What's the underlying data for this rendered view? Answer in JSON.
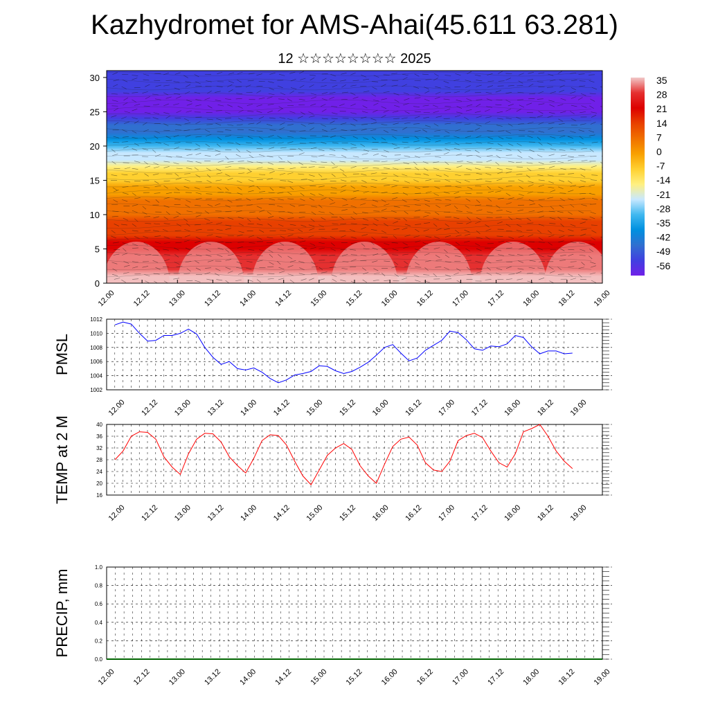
{
  "title": "Kazhydromet for AMS-Ahai(45.611 63.281)",
  "subtitle": "12 ☆☆☆☆☆☆☆☆ 2025",
  "chart_data": [
    {
      "type": "heatmap",
      "title": "",
      "xlabel": "",
      "ylabel": "",
      "x_tick_labels": [
        "12.00",
        "12.12",
        "13.00",
        "13.12",
        "14.00",
        "14.12",
        "15.00",
        "15.12",
        "16.00",
        "16.12",
        "17.00",
        "17.12",
        "18.00",
        "18.12",
        "19.00"
      ],
      "y_ticks": [
        0,
        5,
        10,
        15,
        20,
        25,
        30
      ],
      "ylim": [
        0,
        31
      ],
      "overlay": "wind vectors",
      "colorbar": {
        "labels": [
          "35",
          "28",
          "21",
          "14",
          "7",
          "0",
          "-7",
          "-14",
          "-21",
          "-28",
          "-35",
          "-42",
          "-49",
          "-56"
        ],
        "range": [
          -56,
          35
        ],
        "colors": [
          "#f2c8c8",
          "#e53030",
          "#dd0000",
          "#e84000",
          "#f07000",
          "#f8a000",
          "#ffd030",
          "#fff080",
          "#c8e8ff",
          "#40b8f0",
          "#0090e0",
          "#3070d0",
          "#4040e0",
          "#7020e8"
        ]
      },
      "levels": [
        0,
        5,
        10,
        15,
        20,
        25,
        30
      ],
      "level_temps": [
        35,
        22,
        10,
        -5,
        -28,
        -56,
        -50
      ]
    },
    {
      "type": "line",
      "title": "",
      "xlabel": "",
      "ylabel": "PMSL",
      "color": "#0000ff",
      "x_tick_labels": [
        "12.00",
        "12.12",
        "13.00",
        "13.12",
        "14.00",
        "14.12",
        "15.00",
        "15.12",
        "16.00",
        "16.12",
        "17.00",
        "17.12",
        "18.00",
        "18.12",
        "19.00"
      ],
      "y_ticks": [
        1002,
        1004,
        1006,
        1008,
        1010,
        1012
      ],
      "ylim": [
        1002,
        1012
      ],
      "values": [
        1011.2,
        1011.6,
        1011.3,
        1010.0,
        1008.9,
        1009.0,
        1009.7,
        1009.7,
        1010.0,
        1010.6,
        1009.9,
        1008.0,
        1006.6,
        1005.6,
        1006.0,
        1005.0,
        1004.8,
        1005.1,
        1004.5,
        1003.6,
        1003.0,
        1003.4,
        1004.1,
        1004.3,
        1004.6,
        1005.4,
        1005.3,
        1004.7,
        1004.3,
        1004.6,
        1005.2,
        1005.9,
        1006.9,
        1008.0,
        1008.4,
        1007.2,
        1006.1,
        1006.5,
        1007.6,
        1008.3,
        1009.0,
        1010.3,
        1010.1,
        1009.1,
        1007.8,
        1007.6,
        1008.2,
        1008.1,
        1008.5,
        1009.7,
        1009.4,
        1008.1,
        1007.1,
        1007.5,
        1007.5,
        1007.1,
        1007.2
      ]
    },
    {
      "type": "line",
      "title": "",
      "xlabel": "",
      "ylabel": "TEMP at 2 M",
      "color": "#ff0000",
      "x_tick_labels": [
        "12.00",
        "12.12",
        "13.00",
        "13.12",
        "14.00",
        "14.12",
        "15.00",
        "15.12",
        "16.00",
        "16.12",
        "17.00",
        "17.12",
        "18.00",
        "18.12",
        "19.00"
      ],
      "y_ticks": [
        16,
        20,
        24,
        28,
        32,
        36,
        40
      ],
      "ylim": [
        16,
        40
      ],
      "values": [
        28.0,
        31.0,
        36.0,
        37.5,
        37.3,
        35.0,
        29.0,
        25.5,
        23.0,
        30.0,
        35.0,
        37.0,
        36.8,
        34.0,
        29.0,
        26.0,
        23.5,
        28.5,
        34.5,
        36.5,
        36.2,
        33.0,
        27.5,
        22.5,
        19.5,
        24.5,
        29.5,
        32.0,
        33.5,
        31.5,
        26.0,
        22.5,
        20.0,
        26.5,
        32.5,
        35.0,
        35.7,
        33.0,
        27.0,
        24.5,
        24.0,
        27.5,
        34.5,
        36.2,
        37.0,
        35.5,
        31.0,
        27.0,
        25.5,
        30.0,
        37.5,
        38.6,
        40.0,
        36.0,
        31.0,
        27.5,
        25.0
      ]
    },
    {
      "type": "bar",
      "title": "",
      "xlabel": "",
      "ylabel": "PRECIP, mm",
      "x_tick_labels": [
        "12.00",
        "12.12",
        "13.00",
        "13.12",
        "14.00",
        "14.12",
        "15.00",
        "15.12",
        "16.00",
        "16.12",
        "17.00",
        "17.12",
        "18.00",
        "18.12",
        "19.00"
      ],
      "y_ticks": [
        "0.0",
        "0.2",
        "0.4",
        "0.6",
        "0.8",
        "1.0"
      ],
      "ylim": [
        0,
        1
      ],
      "values": [
        0,
        0,
        0,
        0,
        0,
        0,
        0,
        0,
        0,
        0,
        0,
        0,
        0,
        0,
        0,
        0,
        0,
        0,
        0,
        0,
        0,
        0,
        0,
        0,
        0,
        0,
        0,
        0,
        0,
        0,
        0,
        0,
        0,
        0,
        0,
        0,
        0,
        0,
        0,
        0,
        0,
        0,
        0,
        0,
        0,
        0,
        0,
        0,
        0,
        0,
        0,
        0,
        0,
        0,
        0,
        0,
        0
      ]
    }
  ]
}
